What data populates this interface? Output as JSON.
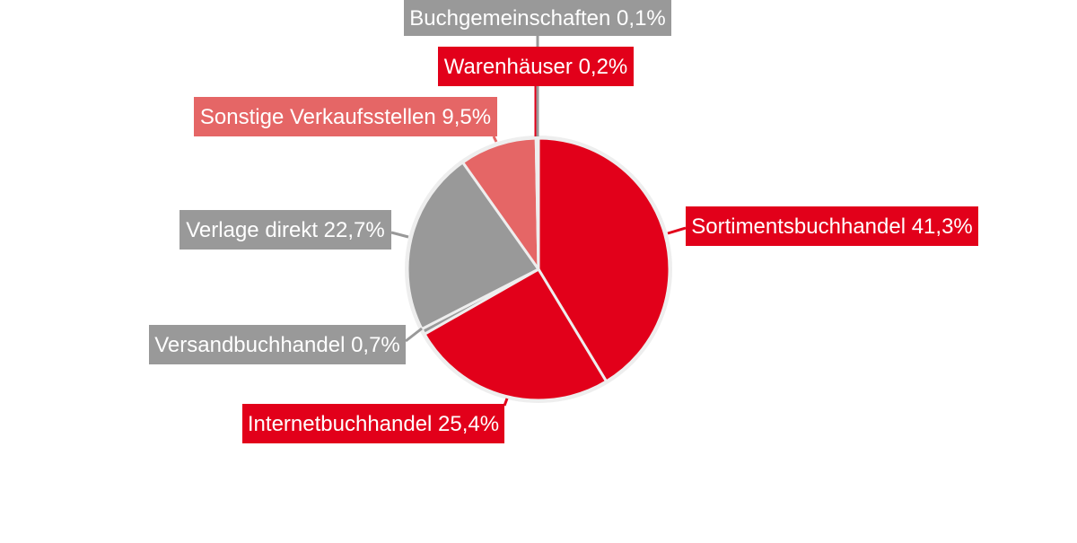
{
  "chart_data": {
    "type": "pie",
    "start": "top, clockwise",
    "slices": [
      {
        "label": "Sortimentsbuchhandel 41,3%",
        "value": 41.3,
        "color": "#e2001a"
      },
      {
        "label": "Internetbuchhandel 25,4%",
        "value": 25.4,
        "color": "#e2001a"
      },
      {
        "label": "Versandbuchhandel 0,7%",
        "value": 0.7,
        "color": "#999999"
      },
      {
        "label": "Verlage direkt 22,7%",
        "value": 22.7,
        "color": "#999999"
      },
      {
        "label": "Sonstige Verkaufsstellen 9,5%",
        "value": 9.5,
        "color": "#e56666"
      },
      {
        "label": "Warenhäuser 0,2%",
        "value": 0.2,
        "color": "#e2001a"
      },
      {
        "label": "Buchgemeinschaften 0,1%",
        "value": 0.1,
        "color": "#999999"
      }
    ]
  }
}
